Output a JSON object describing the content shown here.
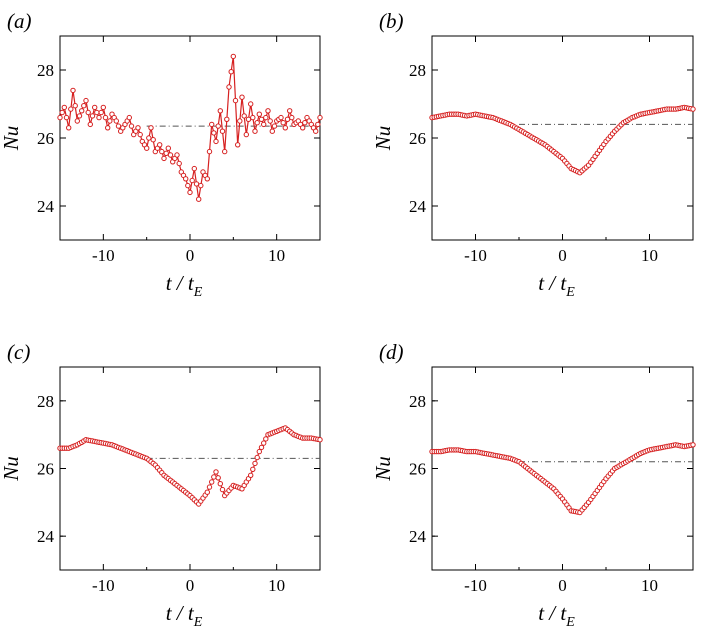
{
  "chart_data": [
    {
      "type": "line",
      "panel_label": "(a)",
      "xlabel": "t / t",
      "xlabel_sub": "E",
      "ylabel": "Nu",
      "xlim": [
        -15,
        15
      ],
      "ylim": [
        23,
        29
      ],
      "xticks": [
        "-10",
        "0",
        "10"
      ],
      "yticks": [
        "24",
        "26",
        "28"
      ],
      "reference_value": 26.35,
      "series": [
        {
          "name": "Nu",
          "color": "#d62020",
          "x": [
            -15,
            -14.5,
            -14,
            -13.5,
            -13,
            -12.5,
            -12,
            -11.5,
            -11,
            -10.5,
            -10,
            -9.5,
            -9,
            -8.5,
            -8,
            -7.5,
            -7,
            -6.5,
            -6,
            -5.5,
            -5,
            -4.5,
            -4,
            -3.5,
            -3,
            -2.5,
            -2,
            -1.5,
            -1,
            -0.5,
            0,
            0.5,
            1,
            1.5,
            2,
            2.5,
            3,
            3.5,
            4,
            4.5,
            5,
            5.5,
            6,
            6.5,
            7,
            7.5,
            8,
            8.5,
            9,
            9.5,
            10,
            10.5,
            11,
            11.5,
            12,
            12.5,
            13,
            13.5,
            14,
            14.5,
            15
          ],
          "y": [
            26.6,
            26.9,
            26.3,
            27.4,
            26.5,
            26.8,
            27.1,
            26.4,
            26.9,
            26.6,
            26.9,
            26.3,
            26.7,
            26.5,
            26.2,
            26.4,
            26.6,
            26.1,
            26.3,
            25.9,
            25.7,
            26.3,
            25.6,
            25.8,
            25.4,
            25.7,
            25.3,
            25.5,
            25.0,
            24.8,
            24.4,
            25.1,
            24.2,
            25.0,
            24.8,
            26.4,
            25.9,
            26.8,
            25.6,
            27.5,
            28.4,
            25.8,
            27.2,
            26.1,
            27.0,
            26.2,
            26.7,
            26.4,
            26.8,
            26.2,
            26.5,
            26.6,
            26.3,
            26.8,
            26.4,
            26.5,
            26.3,
            26.6,
            26.4,
            26.2,
            26.6
          ]
        }
      ]
    },
    {
      "type": "line",
      "panel_label": "(b)",
      "xlabel": "t / t",
      "xlabel_sub": "E",
      "ylabel": "Nu",
      "xlim": [
        -15,
        15
      ],
      "ylim": [
        23,
        29
      ],
      "xticks": [
        "-10",
        "0",
        "10"
      ],
      "yticks": [
        "24",
        "26",
        "28"
      ],
      "reference_value": 26.4,
      "series": [
        {
          "name": "Nu",
          "color": "#d62020",
          "x": [
            -15,
            -14,
            -13,
            -12,
            -11,
            -10,
            -9,
            -8,
            -7,
            -6,
            -5,
            -4,
            -3,
            -2,
            -1,
            0,
            1,
            2,
            3,
            4,
            5,
            6,
            7,
            8,
            9,
            10,
            11,
            12,
            13,
            14,
            15
          ],
          "y": [
            26.6,
            26.65,
            26.7,
            26.7,
            26.65,
            26.7,
            26.65,
            26.6,
            26.5,
            26.4,
            26.25,
            26.1,
            25.95,
            25.8,
            25.6,
            25.4,
            25.1,
            24.98,
            25.2,
            25.55,
            25.9,
            26.2,
            26.45,
            26.6,
            26.7,
            26.75,
            26.8,
            26.85,
            26.85,
            26.9,
            26.85
          ]
        }
      ]
    },
    {
      "type": "line",
      "panel_label": "(c)",
      "xlabel": "t / t",
      "xlabel_sub": "E",
      "ylabel": "Nu",
      "xlim": [
        -15,
        15
      ],
      "ylim": [
        23,
        29
      ],
      "xticks": [
        "-10",
        "0",
        "10"
      ],
      "yticks": [
        "24",
        "26",
        "28"
      ],
      "reference_value": 26.3,
      "series": [
        {
          "name": "Nu",
          "color": "#d62020",
          "x": [
            -15,
            -14,
            -13,
            -12,
            -11,
            -10,
            -9,
            -8,
            -7,
            -6,
            -5,
            -4,
            -3,
            -2,
            -1,
            0,
            1,
            2,
            3,
            4,
            5,
            6,
            7,
            8,
            9,
            10,
            11,
            12,
            13,
            14,
            15
          ],
          "y": [
            26.6,
            26.6,
            26.7,
            26.85,
            26.8,
            26.75,
            26.7,
            26.6,
            26.5,
            26.4,
            26.3,
            26.1,
            25.8,
            25.6,
            25.4,
            25.2,
            24.95,
            25.3,
            25.9,
            25.2,
            25.5,
            25.4,
            25.8,
            26.5,
            27.0,
            27.1,
            27.2,
            27.0,
            26.9,
            26.9,
            26.85
          ]
        }
      ]
    },
    {
      "type": "line",
      "panel_label": "(d)",
      "xlabel": "t / t",
      "xlabel_sub": "E",
      "ylabel": "Nu",
      "xlim": [
        -15,
        15
      ],
      "ylim": [
        23,
        29
      ],
      "xticks": [
        "-10",
        "0",
        "10"
      ],
      "yticks": [
        "24",
        "26",
        "28"
      ],
      "reference_value": 26.2,
      "series": [
        {
          "name": "Nu",
          "color": "#d62020",
          "x": [
            -15,
            -14,
            -13,
            -12,
            -11,
            -10,
            -9,
            -8,
            -7,
            -6,
            -5,
            -4,
            -3,
            -2,
            -1,
            0,
            1,
            2,
            3,
            4,
            5,
            6,
            7,
            8,
            9,
            10,
            11,
            12,
            13,
            14,
            15
          ],
          "y": [
            26.5,
            26.5,
            26.55,
            26.55,
            26.5,
            26.5,
            26.45,
            26.4,
            26.35,
            26.3,
            26.2,
            26.0,
            25.8,
            25.6,
            25.4,
            25.1,
            24.75,
            24.7,
            25.0,
            25.35,
            25.7,
            26.0,
            26.15,
            26.3,
            26.45,
            26.55,
            26.6,
            26.65,
            26.7,
            26.65,
            26.7
          ]
        }
      ]
    }
  ]
}
